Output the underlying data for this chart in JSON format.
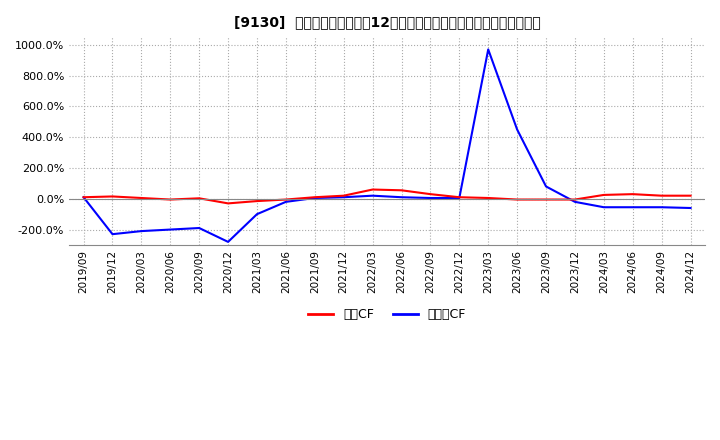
{
  "title": "[9130]  キャッシュフローの12か月移動合計の対前年同期増減率の推移",
  "ylim": [
    -300,
    1050
  ],
  "yticks": [
    -200,
    0,
    200,
    400,
    600,
    800,
    1000
  ],
  "background_color": "#ffffff",
  "grid_color": "#aaaaaa",
  "legend_labels": [
    "営業CF",
    "フリーCF"
  ],
  "legend_colors": [
    "#ff0000",
    "#0000ff"
  ],
  "x_labels": [
    "2019/09",
    "2019/12",
    "2020/03",
    "2020/06",
    "2020/09",
    "2020/12",
    "2021/03",
    "2021/06",
    "2021/09",
    "2021/12",
    "2022/03",
    "2022/06",
    "2022/09",
    "2022/12",
    "2023/03",
    "2023/06",
    "2023/09",
    "2023/12",
    "2024/03",
    "2024/06",
    "2024/09",
    "2024/12"
  ],
  "operating_cf": [
    10.0,
    15.0,
    5.0,
    -5.0,
    3.0,
    -30.0,
    -15.0,
    -5.0,
    10.0,
    20.0,
    60.0,
    55.0,
    30.0,
    10.0,
    5.0,
    -5.0,
    -5.0,
    -5.0,
    25.0,
    30.0,
    20.0,
    20.0
  ],
  "free_cf": [
    10.0,
    -230.0,
    -210.0,
    -200.0,
    -190.0,
    -280.0,
    -100.0,
    -20.0,
    5.0,
    10.0,
    20.0,
    10.0,
    5.0,
    5.0,
    970.0,
    450.0,
    80.0,
    -20.0,
    -55.0,
    -55.0,
    -55.0,
    -60.0
  ]
}
